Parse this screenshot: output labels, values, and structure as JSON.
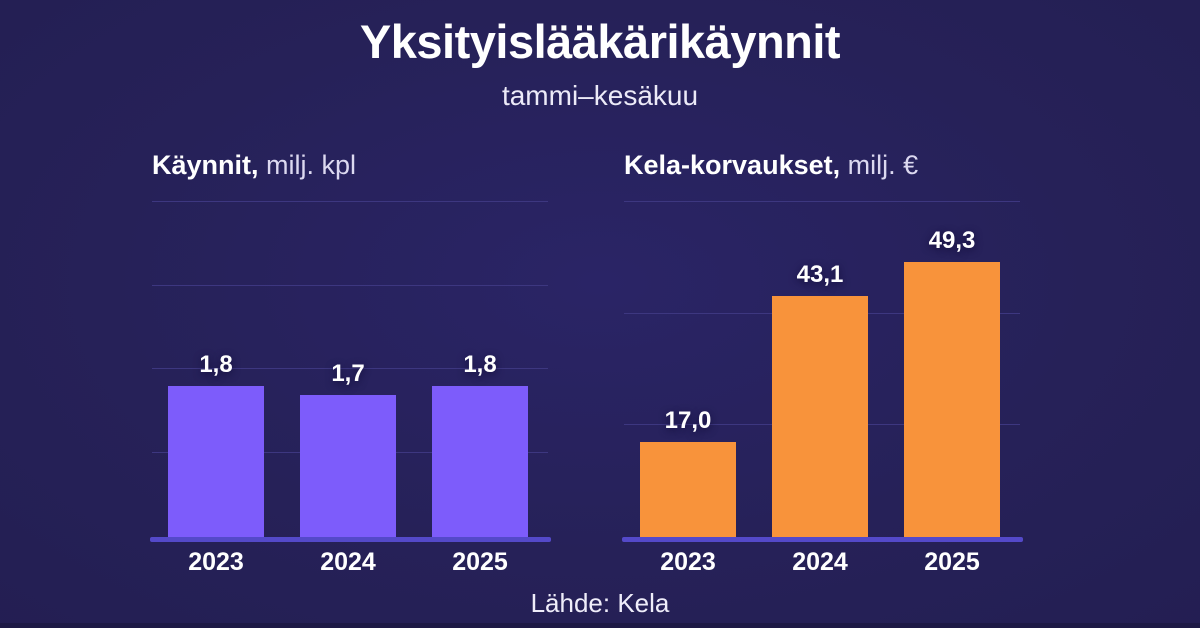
{
  "title": "Yksityislääkärikäynnit",
  "subtitle": "tammi–kesäkuu",
  "footer": {
    "source_label": "Lähde: Kela"
  },
  "colors": {
    "background": "#262158",
    "bar_purple": "#7d5cfb",
    "bar_orange": "#f8933b",
    "axis_line": "#5449c9",
    "gridline": "#3d3780",
    "text": "#ffffff",
    "bottom_strip": "#1d1945"
  },
  "chart_data": [
    {
      "type": "bar",
      "title_bold": "Käynnit,",
      "title_unit": " milj. kpl",
      "categories": [
        "2023",
        "2024",
        "2025"
      ],
      "values": [
        1.8,
        1.7,
        1.8
      ],
      "value_labels": [
        "1,8",
        "1,7",
        "1,8"
      ],
      "ylim": [
        0,
        4
      ],
      "gridline_step": 1,
      "grid": "on",
      "legend": "none",
      "bar_color": "#7d5cfb"
    },
    {
      "type": "bar",
      "title_bold": "Kela-korvaukset,",
      "title_unit": " milj. €",
      "categories": [
        "2023",
        "2024",
        "2025"
      ],
      "values": [
        17.0,
        43.1,
        49.3
      ],
      "value_labels": [
        "17,0",
        "43,1",
        "49,3"
      ],
      "ylim": [
        0,
        60
      ],
      "gridline_step": 20,
      "grid": "on",
      "legend": "none",
      "bar_color": "#f8933b"
    }
  ]
}
